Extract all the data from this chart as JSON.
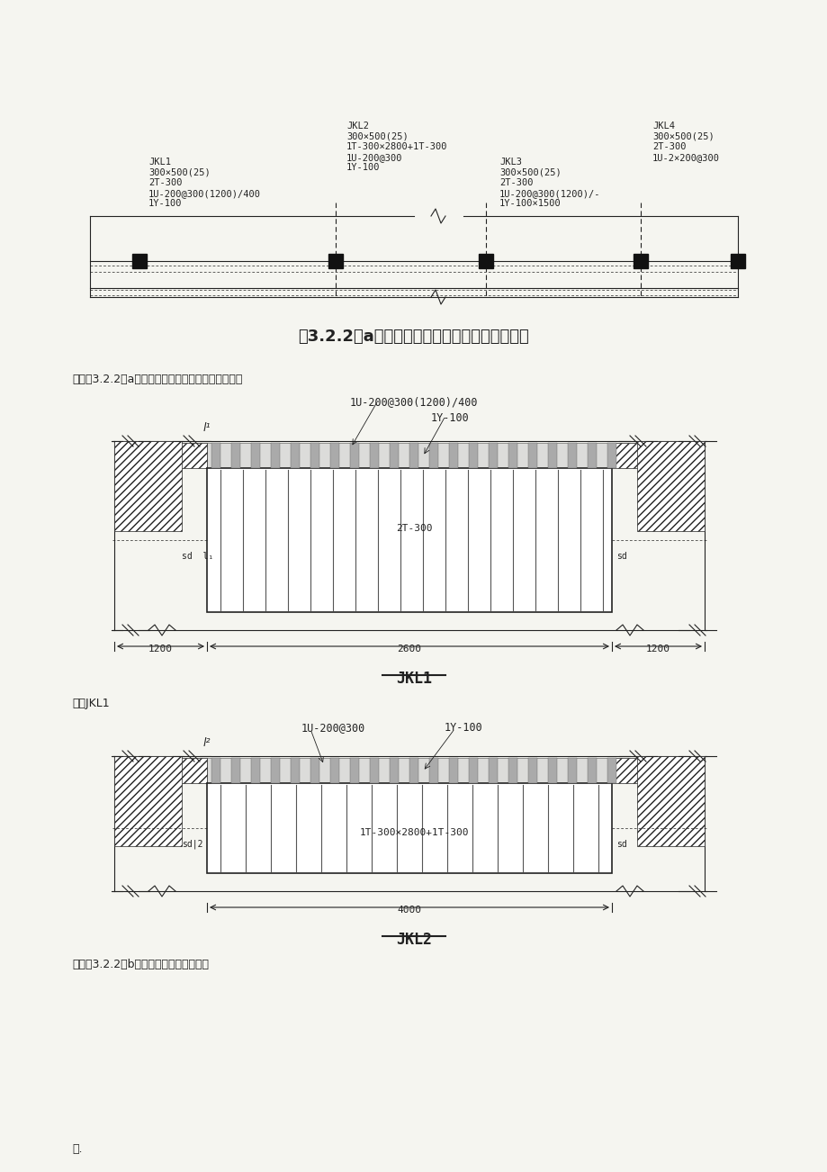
{
  "bg_color": "#f5f5f0",
  "title_fig322a": "图3.2.2（a）碳纤维加固梁底平面注写方法示例",
  "note1": "注：图3.2.2（a）碳纤维加固梁底平面注写方法示例",
  "note2": "注：JKL1",
  "note3": "注：图3.2.2（b）碳纤维加固梁底示意图",
  "footer": "；.",
  "jkl1_label": "JKL1",
  "jkl2_label": "JKL2",
  "dim_label_1u200": "1U-200@300(1200)/400",
  "dim_label_1y100_jkl1": "1Y-100",
  "dim_label_2t300": "2T-300",
  "dim_1200_left": "1200",
  "dim_2600": "2600",
  "dim_1200_right": "1200",
  "jkl2_1u200": "1U-200@300",
  "jkl2_1y100": "1Y-100",
  "jkl2_1t300": "1T-300×2800+1T-300",
  "jkl2_4000": "4000",
  "jkl1_text": "JKL1\n300×500(25)\n2T-300\n1U-200@300(1200)/400\n1Y-100",
  "jkl2_text": "JKL2\n300×500(25)\n1T-300×2800+1T-300\n1U-200@300\n1Y-100",
  "jkl3_text": "JKL3\n300×500(25)\n2T-300\n1U-200@300(1200)/-\n1Y-100×1500",
  "jkl4_text": "JKL4\n300×500(25)\n2T-300\n1U-2×200@300"
}
